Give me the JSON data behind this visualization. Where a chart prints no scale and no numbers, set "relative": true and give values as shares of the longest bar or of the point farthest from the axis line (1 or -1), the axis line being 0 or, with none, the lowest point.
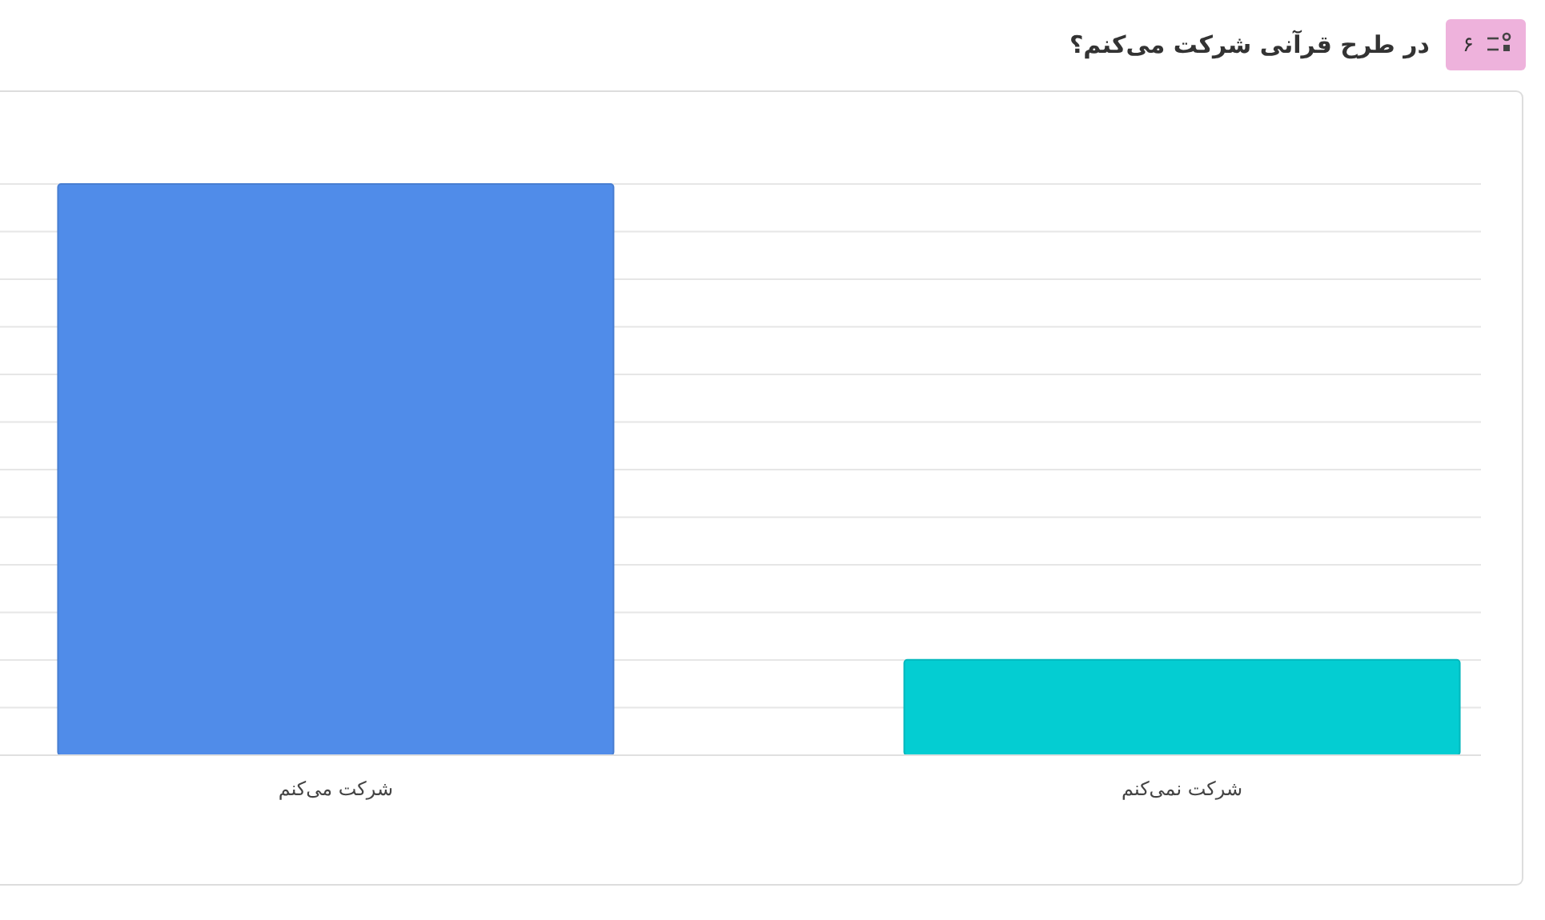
{
  "chart_data": {
    "type": "bar",
    "title": "در طرح قرآنی شرکت می‌کنم؟",
    "annotations": [
      "۶"
    ],
    "categories": [
      "شرکت می‌کنم",
      "شرکت نمی‌کنم"
    ],
    "values": [
      1,
      0.167
    ],
    "colors": [
      "#508ce9",
      "#04cdd2"
    ],
    "relative": true,
    "grid": true
  }
}
